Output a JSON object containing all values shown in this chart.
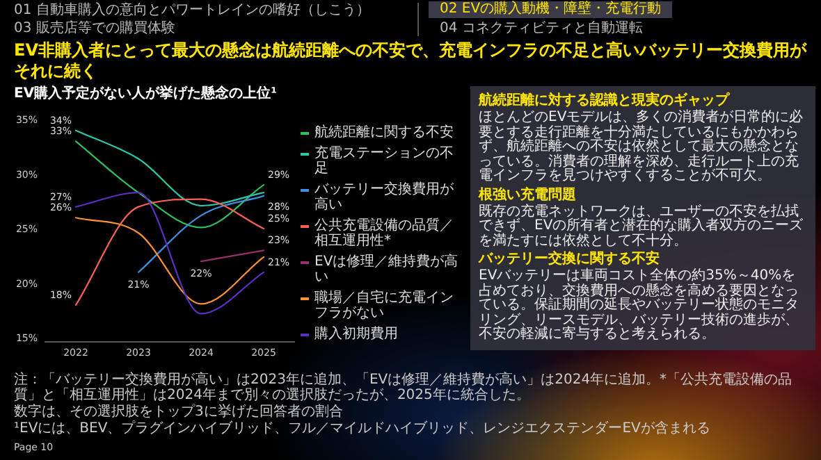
{
  "chart_data": [
    {
      "type": "line",
      "title": "EV非購入者にとって最大の懸念は航続距離への不安で、充電インフラの不足と高いバッテリー交換費用がそれに続く",
      "subtitle": "EV購入予定がない人が挙げた懸念の上位¹",
      "categories": [
        "2022",
        "2023",
        "2024",
        "2025"
      ],
      "ylim": [
        15,
        35
      ],
      "yticks": [
        {
          "value": 15,
          "label": "15%"
        },
        {
          "value": 20,
          "label": "20%"
        },
        {
          "value": 25,
          "label": "25%"
        },
        {
          "value": 30,
          "label": "30%"
        },
        {
          "value": 35,
          "label": "35%"
        }
      ],
      "legend": "right",
      "series": [
        {
          "name": "航続距離に関する不安",
          "color": "#2fbf5f",
          "values": [
            33,
            28.3,
            25.1,
            29
          ],
          "value_labels": [
            "33%",
            null,
            null,
            "29%"
          ]
        },
        {
          "name": "充電ステーションの不足",
          "color": "#2cc7a6",
          "values": [
            34,
            31.4,
            27.1,
            28.3
          ],
          "value_labels": [
            "34%",
            null,
            null,
            null
          ]
        },
        {
          "name": "バッテリー交換費用が高い",
          "color": "#3f8fe3",
          "values": [
            null,
            21,
            26.2,
            28
          ],
          "value_labels": [
            null,
            "21%",
            null,
            "28%"
          ]
        },
        {
          "name": "公共充電設備の品質／相互運用性*",
          "color": "#ff5f52",
          "values": [
            18,
            27,
            27.7,
            25
          ],
          "value_labels": [
            "18%",
            null,
            null,
            "25%"
          ]
        },
        {
          "name": "EVは修理／維持費が高い",
          "color": "#9a2d6e",
          "values": [
            null,
            null,
            22,
            23
          ],
          "value_labels": [
            null,
            null,
            "22%",
            "23%"
          ]
        },
        {
          "name": "職場／自宅に充電インフラがない",
          "color": "#ff9233",
          "values": [
            26,
            24.6,
            18.1,
            22.4
          ],
          "value_labels": [
            "26%",
            null,
            null,
            null
          ]
        },
        {
          "name": "購入初期費用",
          "color": "#5b2fc4",
          "values": [
            27,
            28.3,
            17.2,
            21
          ],
          "value_labels": [
            "27%",
            null,
            null,
            "21%"
          ]
        }
      ],
      "annotations": [
        "01  自動車購入の意向とパワートレインの嗜好（しこう）",
        "02  EVの購入動機・障壁・充電行動",
        "03  販売店等での購買体験",
        "04  コネクティビティと自動運転",
        "注：「バッテリー交換費用が高い」は2023年に追加、「EVは修理／維持費が高い」は2024年に追加。*「公共充電設備の品質」と「相互運用性」は2024年まで別々の選択肢だったが、2025年に統合した。",
        "数字は、その選択肢をトップ3に挙げた回答者の割合",
        "¹EVには、BEV、プラグインハイブリッド、フル／マイルドハイブリッド、レンジエクステンダーEVが含まれる",
        "Page 10"
      ]
    },
    {
      "type": "other",
      "annotations": [
        "航続距離に対する認識と現実のギャップ",
        "ほとんどのEVモデルは、多くの消費者が日常的に必要とする走行距離を十分満たしているにもかかわらず、航続距離への不安は依然として最大の懸念となっている。消費者の理解を深め、走行ルート上の充電インフラを見つけやすくすることが不可欠。",
        "根強い充電問題",
        "既存の充電ネットワークは、ユーザーの不安を払拭できず、EVの所有者と潜在的な購入者双方のニーズを満たすには依然として不十分。",
        "バッテリー交換に関する不安",
        "EVバッテリーは車両コスト全体の約35%～40%を占めており、交換費用への懸念を高める要因となっている。保証期間の延長やバッテリー状態のモニタリング、リースモデル、バッテリー技術の進歩が、不安の軽減に寄与すると考えられる。"
      ]
    }
  ]
}
